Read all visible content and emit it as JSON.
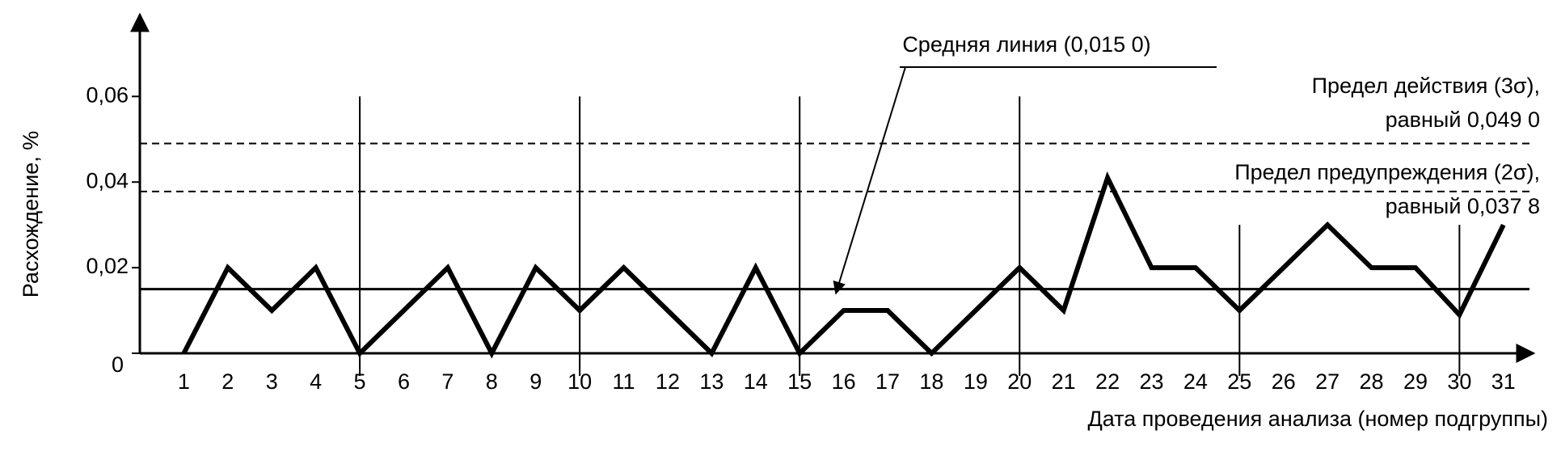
{
  "chart_data": {
    "type": "line",
    "x_label": "Дата проведения анализа (номер подгруппы)",
    "y_label": "Расхождение, %",
    "x": [
      1,
      2,
      3,
      4,
      5,
      6,
      7,
      8,
      9,
      10,
      11,
      12,
      13,
      14,
      15,
      16,
      17,
      18,
      19,
      20,
      21,
      22,
      23,
      24,
      25,
      26,
      27,
      28,
      29,
      30,
      31
    ],
    "series": [
      {
        "name": null,
        "color": "#000000",
        "values": [
          0,
          0.02,
          0.01,
          0.02,
          0,
          0.01,
          0.02,
          0,
          0.02,
          0.01,
          0.02,
          0.01,
          0,
          0.02,
          0,
          0.01,
          0.01,
          0,
          0.01,
          0.02,
          0.01,
          0.041,
          0.02,
          0.02,
          0.01,
          0.02,
          0.03,
          0.02,
          0.02,
          0.009,
          0.03
        ]
      }
    ],
    "xlim": [
      0,
      31.5
    ],
    "ylim": [
      0,
      0.078
    ],
    "xticks": [
      1,
      2,
      3,
      4,
      5,
      6,
      7,
      8,
      9,
      10,
      11,
      12,
      13,
      14,
      15,
      16,
      17,
      18,
      19,
      20,
      21,
      22,
      23,
      24,
      25,
      26,
      27,
      28,
      29,
      30,
      31
    ],
    "yticks": [
      {
        "value": 0,
        "label": "0"
      },
      {
        "value": 0.02,
        "label": "0,02"
      },
      {
        "value": 0.04,
        "label": "0,04"
      },
      {
        "value": 0.06,
        "label": "0,06"
      }
    ],
    "separators": [
      {
        "x": 5,
        "top": 0.06
      },
      {
        "x": 10,
        "top": 0.06
      },
      {
        "x": 15,
        "top": 0.06
      },
      {
        "x": 20,
        "top": 0.06
      },
      {
        "x": 25,
        "top": 0.03
      },
      {
        "x": 30,
        "top": 0.03
      }
    ],
    "reference_lines": [
      {
        "value": 0.015,
        "style": "solid",
        "label_lines": [
          "Средняя линия (0,015 0)"
        ]
      },
      {
        "value": 0.049,
        "style": "dashed",
        "label_lines": [
          "Предел действия (3σ),",
          "равный 0,049 0"
        ]
      },
      {
        "value": 0.0378,
        "style": "dashed",
        "label_lines": [
          "Предел предупреждения (2σ),",
          "равный 0,037 8"
        ]
      }
    ]
  }
}
